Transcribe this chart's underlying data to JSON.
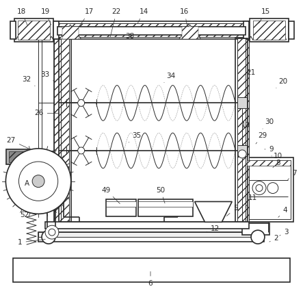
{
  "bg_color": "#ffffff",
  "line_color": "#2a2a2a",
  "figsize": [
    4.43,
    4.25
  ],
  "dpi": 100
}
